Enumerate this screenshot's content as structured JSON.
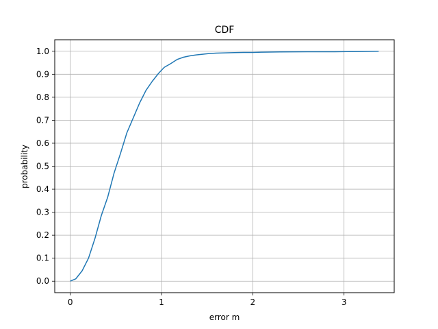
{
  "chart_data": {
    "type": "line",
    "title": "CDF",
    "xlabel": "error m",
    "ylabel": "probability",
    "xlim": [
      -0.17,
      3.55
    ],
    "ylim": [
      -0.05,
      1.05
    ],
    "xticks": [
      0,
      1,
      2,
      3
    ],
    "xtick_labels": [
      "0",
      "1",
      "2",
      "3"
    ],
    "yticks": [
      0.0,
      0.1,
      0.2,
      0.3,
      0.4,
      0.5,
      0.6,
      0.7,
      0.8,
      0.9,
      1.0
    ],
    "ytick_labels": [
      "0.0",
      "0.1",
      "0.2",
      "0.3",
      "0.4",
      "0.5",
      "0.6",
      "0.7",
      "0.8",
      "0.9",
      "1.0"
    ],
    "grid": true,
    "legend": false,
    "series": [
      {
        "color": "#1f77b4",
        "x": [
          0,
          0.06,
          0.13,
          0.2,
          0.27,
          0.34,
          0.41,
          0.48,
          0.55,
          0.62,
          0.69,
          0.76,
          0.83,
          0.9,
          0.97,
          1.03,
          1.1,
          1.17,
          1.24,
          1.31,
          1.38,
          1.45,
          1.52,
          1.6,
          1.7,
          1.8,
          1.9,
          2.0,
          2.1,
          2.3,
          2.6,
          2.9,
          3.2,
          3.38
        ],
        "y": [
          0.0,
          0.01,
          0.045,
          0.1,
          0.185,
          0.285,
          0.365,
          0.47,
          0.555,
          0.645,
          0.71,
          0.775,
          0.83,
          0.87,
          0.905,
          0.93,
          0.946,
          0.964,
          0.974,
          0.98,
          0.984,
          0.987,
          0.99,
          0.992,
          0.993,
          0.994,
          0.995,
          0.995,
          0.996,
          0.997,
          0.998,
          0.998,
          0.999,
          1.0
        ]
      }
    ]
  }
}
